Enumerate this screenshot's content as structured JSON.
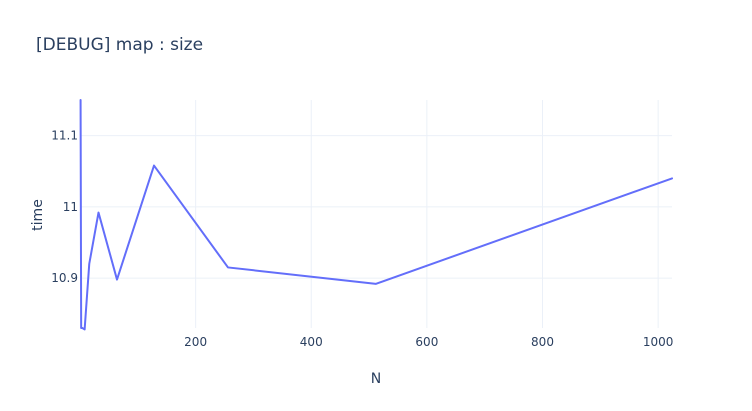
{
  "chart_data": {
    "type": "line",
    "title": "[DEBUG] map : size",
    "xlabel": "N",
    "ylabel": "time",
    "xlim": [
      0,
      1024
    ],
    "ylim": [
      10.83,
      11.15
    ],
    "x_ticks": [
      200,
      400,
      600,
      800,
      1000
    ],
    "y_ticks": [
      10.9,
      11,
      11.1
    ],
    "x_tick_labels": [
      "200",
      "400",
      "600",
      "800",
      "1000"
    ],
    "y_tick_labels": [
      "10.9",
      "11",
      "11.1"
    ],
    "grid": true,
    "legend": "none",
    "series": [
      {
        "color": "#636efa",
        "x": [
          1,
          2,
          4,
          8,
          16,
          32,
          64,
          128,
          256,
          512,
          1024
        ],
        "y": [
          11.15,
          10.83,
          10.83,
          10.828,
          10.92,
          10.992,
          10.898,
          11.058,
          10.915,
          10.892,
          11.04
        ]
      }
    ]
  }
}
